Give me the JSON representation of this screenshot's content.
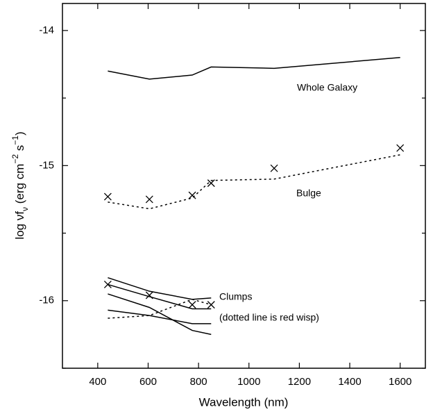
{
  "chart_data": {
    "type": "line",
    "xlabel": "Wavelength (nm)",
    "ylabel": [
      {
        "text": "log νf"
      },
      {
        "text": "ν",
        "shift": "sub"
      },
      {
        "text": " (erg cm"
      },
      {
        "text": "−2",
        "shift": "super"
      },
      {
        "text": " s"
      },
      {
        "text": "−1",
        "shift": "super"
      },
      {
        "text": ")"
      }
    ],
    "xlim": [
      260,
      1700
    ],
    "ylim": [
      -16.5,
      -13.8
    ],
    "xticks": [
      400,
      600,
      800,
      1000,
      1200,
      1400,
      1600
    ],
    "yticks": [
      -16,
      -15,
      -14
    ],
    "yminor": [
      -16.5,
      -15.5,
      -14.5
    ],
    "annotations": [
      "Whole Galaxy",
      "Bulge",
      "Clumps",
      "(dotted line is red wisp)"
    ],
    "series": [
      {
        "style": "solid",
        "color": "#000000",
        "x": [
          440,
          605,
          775,
          850,
          1100,
          1600
        ],
        "values": [
          -14.3,
          -14.36,
          -14.33,
          -14.27,
          -14.28,
          -14.2
        ]
      },
      {
        "style": "dotted",
        "color": "#000000",
        "x": [
          440,
          605,
          775,
          850,
          1100,
          1600
        ],
        "values": [
          -15.27,
          -15.32,
          -15.24,
          -15.11,
          -15.1,
          -14.92
        ]
      },
      {
        "style": "cross",
        "color": "#000000",
        "x": [
          440,
          605,
          775,
          850,
          1100,
          1600
        ],
        "values": [
          -15.23,
          -15.25,
          -15.22,
          -15.13,
          -15.02,
          -14.87
        ]
      },
      {
        "style": "solid",
        "color": "#000000",
        "x": [
          440,
          605,
          775,
          850
        ],
        "values": [
          -15.83,
          -15.93,
          -15.99,
          -15.98
        ]
      },
      {
        "style": "solid",
        "color": "#000000",
        "x": [
          440,
          605,
          775,
          850
        ],
        "values": [
          -15.88,
          -15.97,
          -16.06,
          -16.06
        ]
      },
      {
        "style": "solid",
        "color": "#000000",
        "x": [
          440,
          605,
          775,
          850
        ],
        "values": [
          -15.95,
          -16.05,
          -16.22,
          -16.25
        ]
      },
      {
        "style": "solid",
        "color": "#000000",
        "x": [
          440,
          605,
          775,
          850
        ],
        "values": [
          -16.07,
          -16.11,
          -16.17,
          -16.17
        ]
      },
      {
        "style": "dotted",
        "color": "#000000",
        "x": [
          440,
          605,
          775,
          850
        ],
        "values": [
          -16.13,
          -16.11,
          -15.99,
          -16.03
        ]
      },
      {
        "style": "cross",
        "color": "#000000",
        "x": [
          440,
          605,
          775,
          850
        ],
        "values": [
          -15.88,
          -15.96,
          -16.03,
          -16.03
        ]
      }
    ]
  }
}
